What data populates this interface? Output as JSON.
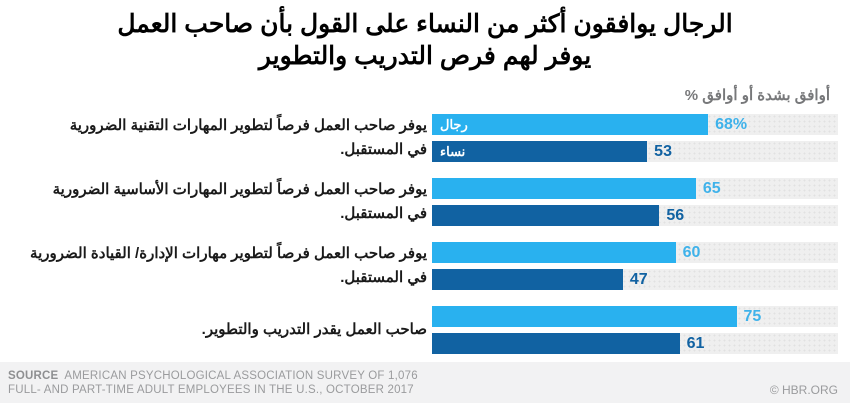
{
  "title": {
    "line1": "الرجال يوافقون أكثر من النساء على القول بأن صاحب العمل",
    "line2": "يوفر لهم فرص التدريب والتطوير"
  },
  "subtitle": "أوافق بشدة أو أوافق %",
  "legend": {
    "men": "رجال",
    "women": "نساء"
  },
  "colors": {
    "men_bar": "#29b1ef",
    "women_bar": "#1162a2",
    "men_value_text": "#3fb2ea",
    "women_value_text": "#1162a2",
    "track": "#efefef",
    "title_text": "#000000",
    "subtitle_text": "#77787a",
    "footer_bg": "#f2f2f3",
    "footer_text": "#9a9b9d"
  },
  "groups": [
    {
      "label_line1": "يوفر صاحب العمل فرصاً لتطوير المهارات التقنية الضرورية",
      "label_line2": "في المستقبل.",
      "men": {
        "value": 68,
        "display": "68%"
      },
      "women": {
        "value": 53,
        "display": "53"
      }
    },
    {
      "label_line1": "يوفر صاحب العمل فرصاً لتطوير المهارات الأساسية الضرورية",
      "label_line2": "في المستقبل.",
      "men": {
        "value": 65,
        "display": "65"
      },
      "women": {
        "value": 56,
        "display": "56"
      }
    },
    {
      "label_line1": "يوفر صاحب العمل فرصاً لتطوير مهارات الإدارة/ القيادة الضرورية",
      "label_line2": "في المستقبل.",
      "men": {
        "value": 60,
        "display": "60"
      },
      "women": {
        "value": 47,
        "display": "47"
      }
    },
    {
      "label_line1": "صاحب العمل يقدر التدريب والتطوير.",
      "label_line2": "",
      "men": {
        "value": 75,
        "display": "75"
      },
      "women": {
        "value": 61,
        "display": "61"
      }
    }
  ],
  "footer": {
    "source_label": "SOURCE",
    "source_line1": "AMERICAN PSYCHOLOGICAL ASSOCIATION SURVEY OF 1,076",
    "source_line2": "FULL- AND PART-TIME ADULT EMPLOYEES IN THE U.S., OCTOBER 2017",
    "credit": "© HBR.ORG"
  },
  "chart_data": {
    "type": "bar",
    "orientation": "horizontal",
    "title": "الرجال يوافقون أكثر من النساء على القول بأن صاحب العمل يوفر لهم فرص التدريب والتطوير",
    "subtitle": "% أوافق بشدة أو أوافق",
    "categories": [
      "يوفر صاحب العمل فرصاً لتطوير المهارات التقنية الضرورية في المستقبل.",
      "يوفر صاحب العمل فرصاً لتطوير المهارات الأساسية الضرورية في المستقبل.",
      "يوفر صاحب العمل فرصاً لتطوير مهارات الإدارة/ القيادة الضرورية في المستقبل.",
      "صاحب العمل يقدر التدريب والتطوير."
    ],
    "series": [
      {
        "name": "رجال",
        "values": [
          68,
          65,
          60,
          75
        ],
        "color": "#29b1ef"
      },
      {
        "name": "نساء",
        "values": [
          53,
          56,
          47,
          61
        ],
        "color": "#1162a2"
      }
    ],
    "unit": "percent",
    "xlim": [
      0,
      100
    ],
    "grid": false,
    "legend_position": "inside-first-bars",
    "value_labels": "end-of-bar"
  }
}
